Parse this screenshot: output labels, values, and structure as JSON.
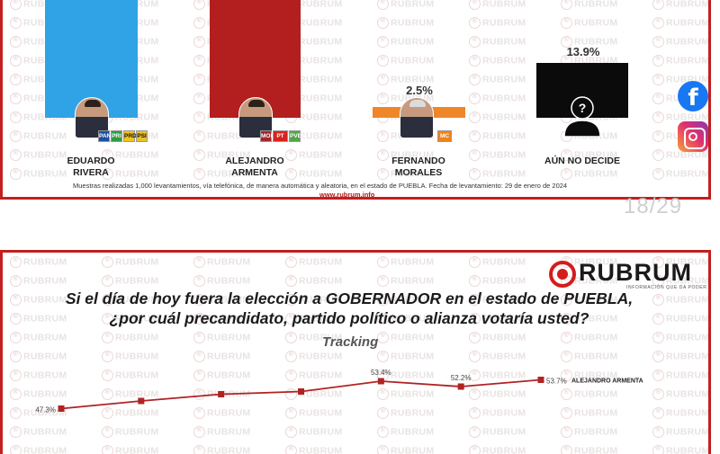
{
  "top_slide": {
    "candidates": [
      {
        "name_line1": "EDUARDO",
        "name_line2": "RIVERA",
        "value_label": "",
        "bar_color": "#2fa3e6",
        "bar_fraction": 1.0,
        "party_logos": [
          "PAN",
          "PRI",
          "PRD",
          "PSI"
        ]
      },
      {
        "name_line1": "ALEJANDRO",
        "name_line2": "ARMENTA",
        "value_label": "",
        "bar_color": "#b31e1e",
        "bar_fraction": 1.0,
        "party_logos": [
          "MOR",
          "PT",
          "PVEM"
        ]
      },
      {
        "name_line1": "FERNANDO",
        "name_line2": "MORALES",
        "value_label": "2.5%",
        "bar_color": "#f0862a",
        "bar_fraction": 0.025,
        "party_logos": [
          "MC"
        ]
      },
      {
        "name_line1": "AÚN NO DECIDE",
        "name_line2": "",
        "value_label": "13.9%",
        "bar_color": "#0b0b0b",
        "bar_fraction": 0.139,
        "party_logos": []
      }
    ],
    "note": "Muestras realizadas 1,000 levantamientos, vía telefónica, de manera automática y aleatoria, en el estado de PUEBLA. Fecha de levantamiento: 29 de enero de 2024",
    "url": "www.rubrum.info",
    "social_icons": [
      "facebook-icon",
      "instagram-icon"
    ],
    "facebook_glyph": "f",
    "unknown_glyph": "?"
  },
  "page_indicator": "18/29",
  "watermark_text": "RUBRUM",
  "bottom_slide": {
    "brand": {
      "name": "RUBRUM",
      "tagline": "INFORMACIÓN QUE DA PODER"
    },
    "question_line1": "Si el día de hoy fuera la elección a GOBERNADOR en el estado de PUEBLA,",
    "question_line2": "¿por cuál precandidato, partido político o alianza votaría usted?",
    "subtitle": "Tracking"
  },
  "chart_data": {
    "type": "line",
    "title": "Tracking",
    "series": [
      {
        "name": "ALEJANDRO ARMENTA",
        "color": "#b02323",
        "values": [
          47.3,
          49.0,
          50.5,
          51.1,
          53.4,
          52.2,
          53.7
        ],
        "data_labels": [
          "47.3%",
          "",
          "",
          "",
          "53.4%",
          "52.2%",
          "53.7%"
        ]
      }
    ],
    "ylim": [
      44,
      58
    ],
    "grid": false,
    "legend": "end-of-line label"
  }
}
